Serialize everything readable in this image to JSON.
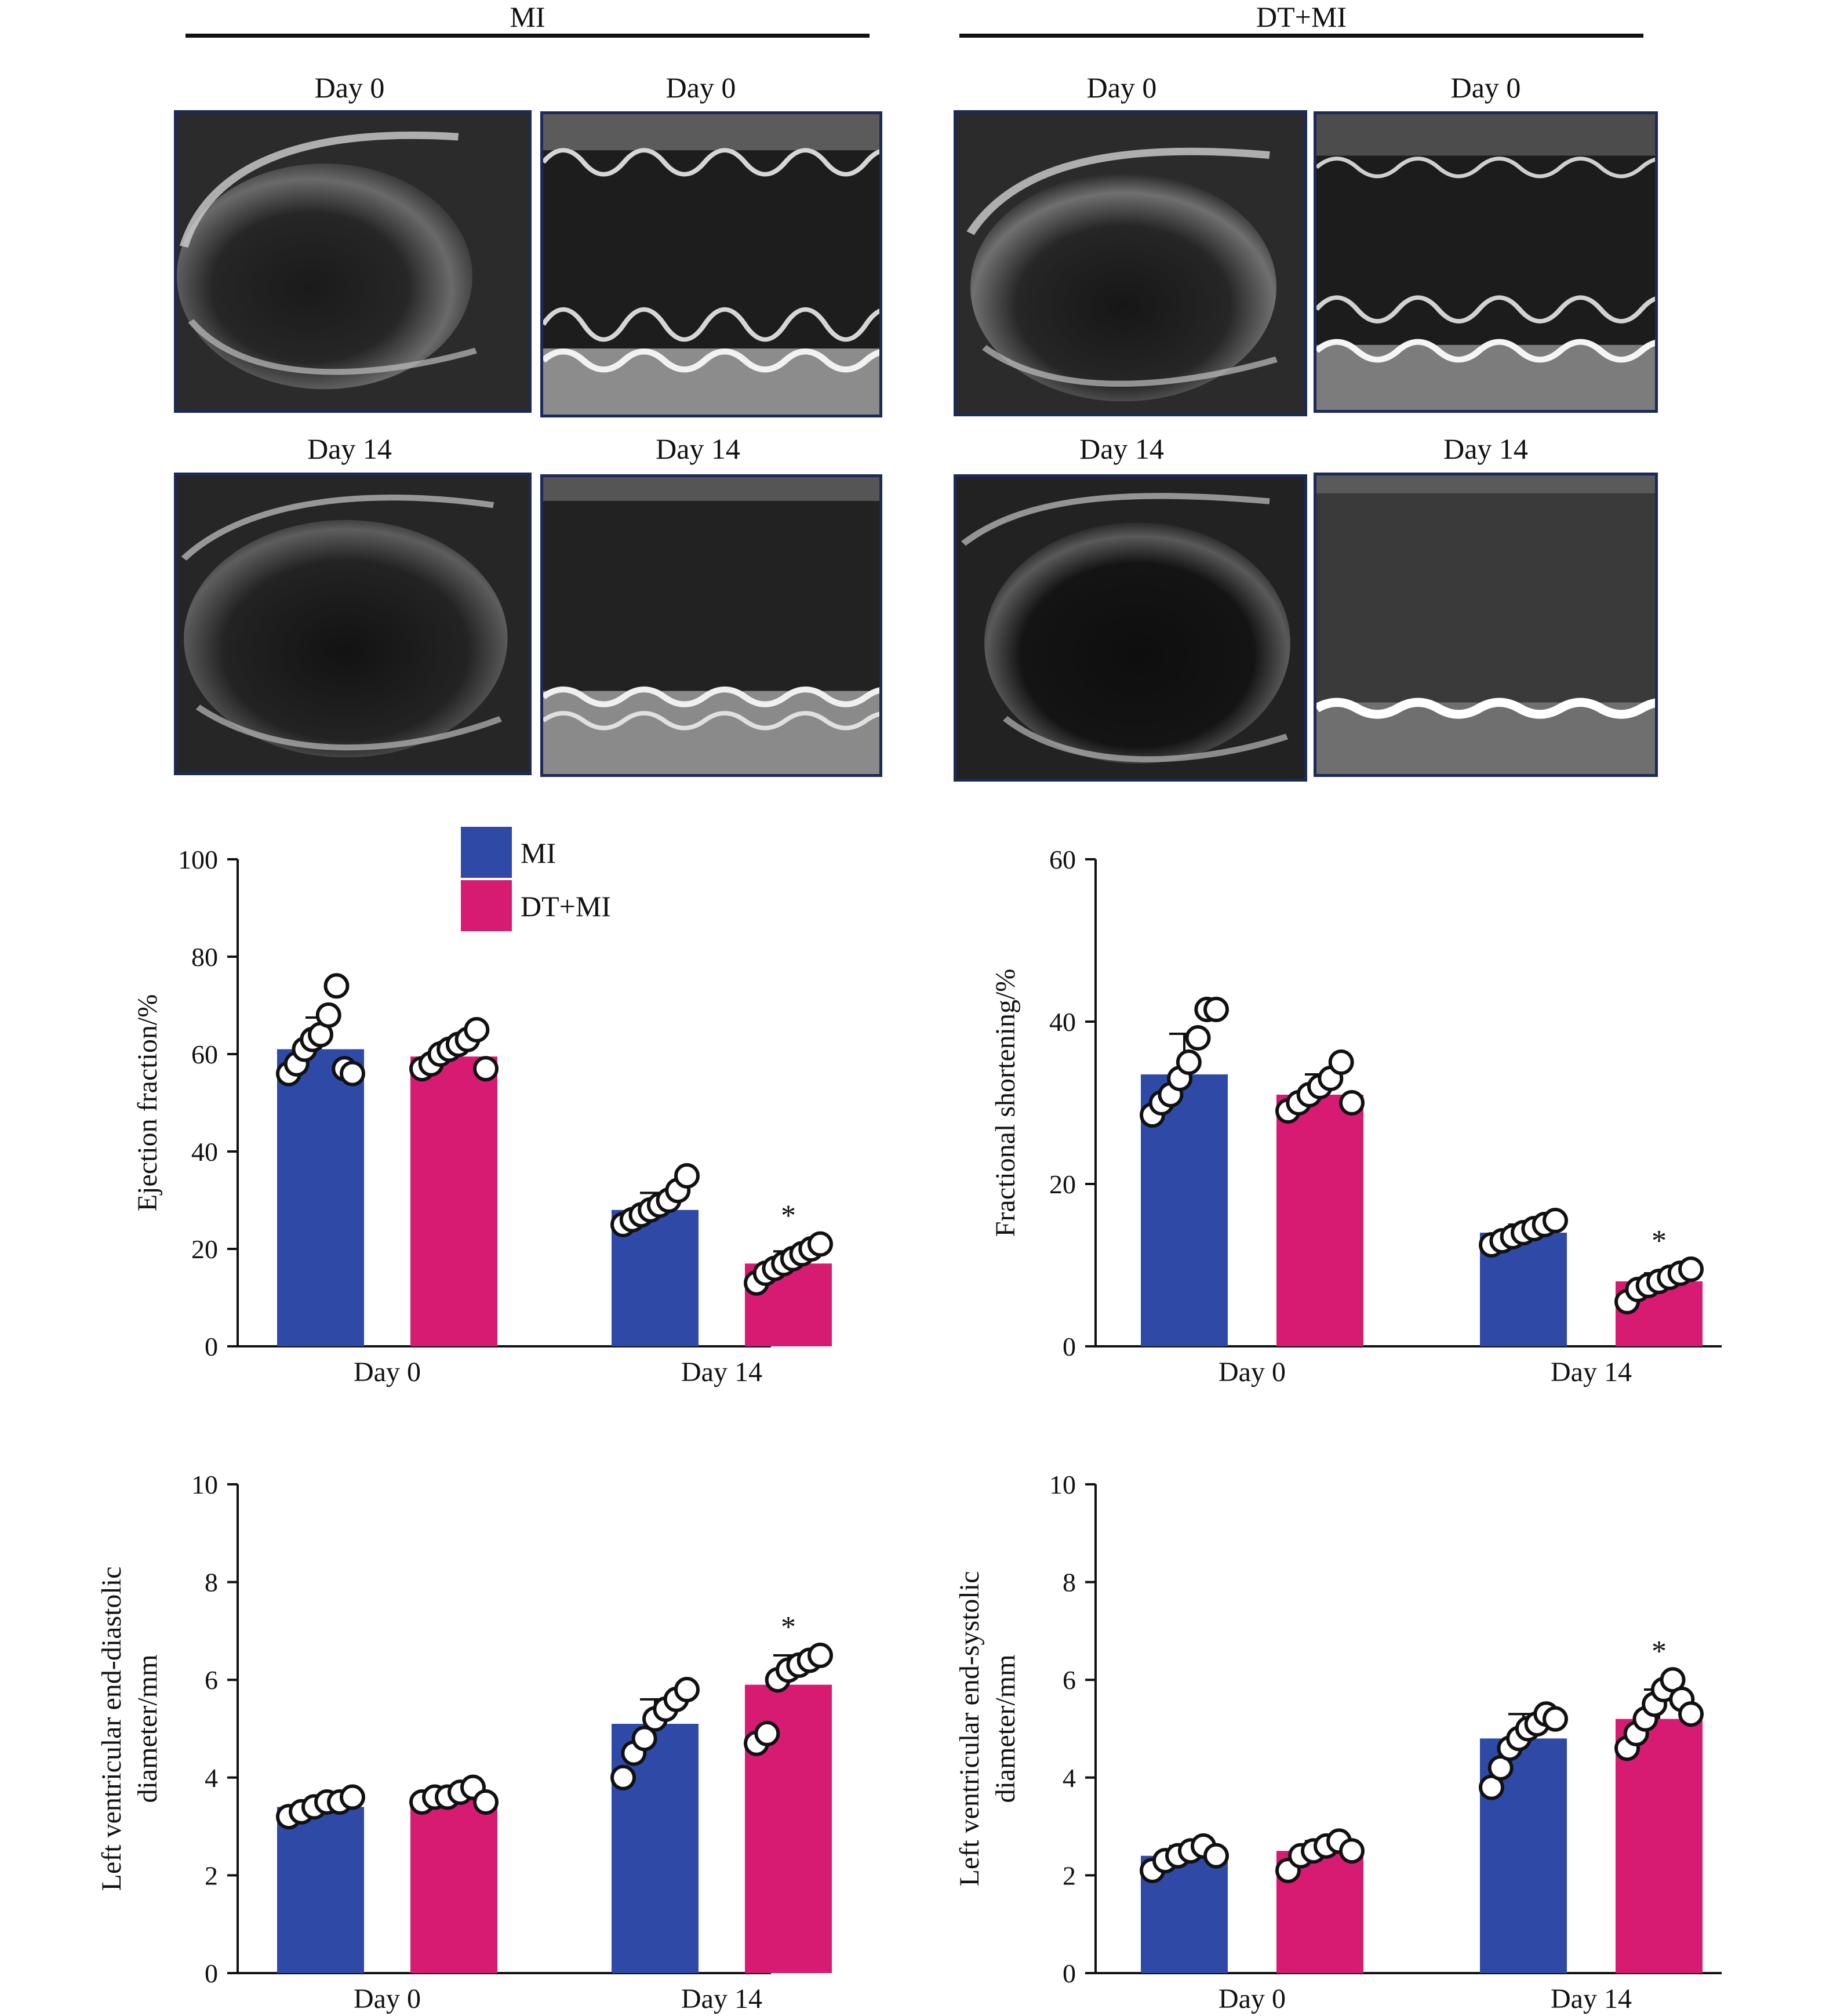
{
  "colors": {
    "MI": "#2e4aa6",
    "DT+MI": "#d81b72",
    "frame": "#1b2a57",
    "marker_fill": "#ffffff",
    "marker_stroke": "#111111"
  },
  "groups": [
    {
      "title": "MI",
      "labels": [
        "Day 0",
        "Day 0",
        "Day 14",
        "Day 14"
      ]
    },
    {
      "title": "DT+MI",
      "labels": [
        "Day 0",
        "Day 0",
        "Day 14",
        "Day 14"
      ]
    }
  ],
  "legend": {
    "items": [
      {
        "label": "MI",
        "color": "#2e4aa6"
      },
      {
        "label": "DT+MI",
        "color": "#d81b72"
      }
    ]
  },
  "chart_data": [
    {
      "type": "bar",
      "ylabel": [
        "Ejection fraction/%"
      ],
      "ylim": [
        0,
        100
      ],
      "yticks": [
        0,
        20,
        40,
        60,
        80,
        100
      ],
      "categories": [
        "Day 0",
        "Day 14"
      ],
      "legend": "top-center",
      "series": [
        {
          "name": "MI",
          "values": [
            61,
            28
          ],
          "errors": [
            6.5,
            3.5
          ],
          "points": [
            [
              56,
              58,
              61,
              63,
              64,
              68,
              74,
              57,
              56
            ],
            [
              25,
              26,
              27,
              28,
              29,
              30,
              32,
              35
            ]
          ]
        },
        {
          "name": "DT+MI",
          "values": [
            59.5,
            17
          ],
          "errors": [
            3,
            2.5
          ],
          "points": [
            [
              57,
              58,
              60,
              61,
              62,
              63,
              65,
              57
            ],
            [
              13,
              15,
              16,
              17,
              18,
              19,
              20,
              21
            ]
          ]
        }
      ],
      "significance": [
        [
          null,
          null
        ],
        [
          null,
          "*"
        ]
      ]
    },
    {
      "type": "bar",
      "ylabel": [
        "Fractional shortening/%"
      ],
      "ylim": [
        0,
        60
      ],
      "yticks": [
        0,
        20,
        40,
        60
      ],
      "categories": [
        "Day 0",
        "Day 14"
      ],
      "series": [
        {
          "name": "MI",
          "values": [
            33.5,
            14
          ],
          "errors": [
            5,
            1
          ],
          "points": [
            [
              28.5,
              30,
              31,
              33,
              35,
              38,
              41.5,
              41.5
            ],
            [
              12.5,
              13,
              13.5,
              14,
              14.5,
              15,
              15.5
            ]
          ]
        },
        {
          "name": "DT+MI",
          "values": [
            31,
            8
          ],
          "errors": [
            2.5,
            1
          ],
          "points": [
            [
              29,
              30,
              31,
              32,
              33,
              35,
              30
            ],
            [
              5.5,
              7,
              7.5,
              8,
              8.5,
              9,
              9.5
            ]
          ]
        }
      ],
      "significance": [
        [
          null,
          null
        ],
        [
          null,
          "*"
        ]
      ]
    },
    {
      "type": "bar",
      "ylabel": [
        "Left ventricular end-diastolic",
        "diameter/mm"
      ],
      "ylim": [
        0,
        10
      ],
      "yticks": [
        0,
        2,
        4,
        6,
        8,
        10
      ],
      "categories": [
        "Day 0",
        "Day 14"
      ],
      "series": [
        {
          "name": "MI",
          "values": [
            3.4,
            5.1
          ],
          "errors": [
            0.15,
            0.5
          ],
          "points": [
            [
              3.2,
              3.3,
              3.4,
              3.5,
              3.5,
              3.6
            ],
            [
              4.0,
              4.5,
              4.8,
              5.2,
              5.4,
              5.6,
              5.8
            ]
          ]
        },
        {
          "name": "DT+MI",
          "values": [
            3.6,
            5.9
          ],
          "errors": [
            0.1,
            0.6
          ],
          "points": [
            [
              3.5,
              3.6,
              3.6,
              3.7,
              3.8,
              3.5
            ],
            [
              4.7,
              4.9,
              6.0,
              6.2,
              6.3,
              6.4,
              6.5
            ]
          ]
        }
      ],
      "significance": [
        [
          null,
          null
        ],
        [
          null,
          "*"
        ]
      ]
    },
    {
      "type": "bar",
      "ylabel": [
        "Left ventricular end-systolic",
        "diameter/mm"
      ],
      "ylim": [
        0,
        10
      ],
      "yticks": [
        0,
        2,
        4,
        6,
        8,
        10
      ],
      "categories": [
        "Day 0",
        "Day 14"
      ],
      "series": [
        {
          "name": "MI",
          "values": [
            2.4,
            4.8
          ],
          "errors": [
            0.2,
            0.5
          ],
          "points": [
            [
              2.1,
              2.3,
              2.4,
              2.5,
              2.6,
              2.4
            ],
            [
              3.8,
              4.2,
              4.6,
              4.8,
              5.0,
              5.1,
              5.3,
              5.2
            ]
          ]
        },
        {
          "name": "DT+MI",
          "values": [
            2.5,
            5.2
          ],
          "errors": [
            0.2,
            0.6
          ],
          "points": [
            [
              2.1,
              2.4,
              2.5,
              2.6,
              2.7,
              2.5
            ],
            [
              4.6,
              4.9,
              5.2,
              5.5,
              5.8,
              6.0,
              5.6,
              5.3
            ]
          ]
        }
      ],
      "significance": [
        [
          null,
          null
        ],
        [
          null,
          "*"
        ]
      ]
    }
  ]
}
